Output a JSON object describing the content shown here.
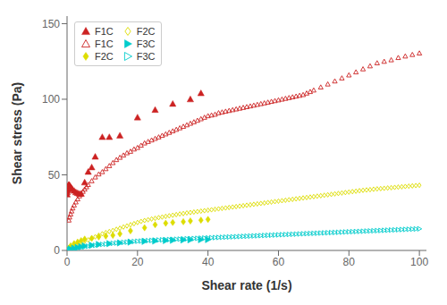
{
  "chart_data": {
    "type": "scatter",
    "xlabel": "Shear rate (1/s)",
    "ylabel": "Shear stress (Pa)",
    "xlim": [
      0,
      102
    ],
    "ylim": [
      0,
      155
    ],
    "xticks": [
      0,
      20,
      40,
      60,
      80,
      100
    ],
    "yticks": [
      0,
      50,
      100,
      150
    ],
    "legend": "upper left",
    "series": [
      {
        "name": "F1C",
        "color": "#cc2222",
        "marker": "triangle",
        "x": [
          0.01,
          0.02,
          0.04,
          0.07,
          0.1,
          0.15,
          0.2,
          0.3,
          0.4,
          0.5,
          0.6,
          0.7,
          0.8,
          1.0,
          1.2,
          1.5,
          2.0,
          2.5,
          3.0,
          3.5,
          4.0,
          5.0,
          6.0,
          7.0,
          8.0,
          10.0,
          12.0,
          15.0,
          20.0,
          25.0,
          30.0,
          35.0,
          38.0
        ],
        "values": [
          37.0,
          38.5,
          39.5,
          40.5,
          41.0,
          41.5,
          42.0,
          42.5,
          43.0,
          43.5,
          43.2,
          43.0,
          42.5,
          42.0,
          41.5,
          40.5,
          39.5,
          38.5,
          38.0,
          37.5,
          37.5,
          45.0,
          52.0,
          55.0,
          62.0,
          75.0,
          75.0,
          76.0,
          88.0,
          93.0,
          97.0,
          100.0,
          104.0
        ]
      },
      {
        "name": "F1C",
        "color": "#cc2222",
        "marker": "triangle_open",
        "x": [
          0.5,
          0.7,
          1.0,
          1.3,
          1.6,
          2.0,
          2.5,
          3.0,
          3.5,
          4.0,
          4.5,
          5.0,
          5.5,
          6.0,
          7.0,
          8.0,
          9.0,
          10.0,
          11.0,
          12.0,
          13.0,
          14.0,
          15.0,
          16.0,
          17.0,
          18.0,
          19.0,
          20.0,
          21.0,
          22.0,
          23.0,
          24.0,
          25.0,
          26.0,
          27.0,
          28.0,
          29.0,
          30.0,
          31.0,
          32.0,
          33.0,
          34.0,
          35.0,
          36.0,
          37.0,
          38.0,
          39.0,
          40.0,
          41.0,
          42.0,
          43.0,
          44.0,
          45.0,
          46.0,
          47.0,
          48.0,
          49.0,
          50.0,
          51.0,
          52.0,
          53.0,
          54.0,
          55.0,
          56.0,
          57.0,
          58.0,
          59.0,
          60.0,
          61.0,
          62.0,
          63.0,
          64.0,
          65.0,
          66.0,
          67.0,
          68.0,
          69.0,
          70.0,
          72.0,
          74.0,
          76.0,
          78.0,
          80.0,
          82.0,
          84.0,
          86.0,
          88.0,
          90.0,
          92.0,
          94.0,
          96.0,
          98.0,
          100.0
        ],
        "values": [
          20.0,
          22.0,
          24.0,
          26.0,
          28.0,
          30.0,
          32.0,
          34.0,
          36.0,
          37.5,
          39.0,
          40.5,
          42.0,
          43.5,
          46.0,
          48.5,
          50.5,
          52.0,
          54.0,
          56.0,
          58.0,
          60.0,
          61.5,
          63.0,
          64.5,
          65.5,
          67.0,
          68.0,
          69.5,
          71.0,
          72.0,
          73.0,
          74.0,
          75.0,
          76.0,
          77.0,
          78.0,
          79.0,
          80.0,
          81.0,
          82.0,
          83.0,
          84.0,
          85.0,
          86.0,
          87.0,
          88.0,
          89.0,
          89.5,
          90.0,
          91.0,
          91.5,
          92.0,
          92.5,
          93.0,
          93.5,
          94.0,
          94.5,
          95.0,
          95.5,
          96.0,
          96.5,
          97.0,
          97.5,
          98.0,
          98.5,
          99.0,
          99.5,
          100.0,
          100.5,
          101.0,
          101.5,
          102.0,
          102.5,
          103.0,
          104.0,
          105.0,
          106.0,
          108.0,
          110.0,
          112.0,
          114.0,
          116.0,
          118.0,
          120.0,
          122.0,
          124.0,
          125.0,
          126.0,
          127.5,
          128.5,
          129.5,
          130.5
        ]
      },
      {
        "name": "F2C",
        "color": "#dddd00",
        "marker": "diamond",
        "x": [
          0.1,
          0.3,
          0.5,
          1.0,
          2.0,
          3.0,
          4.0,
          5.0,
          7.0,
          9.0,
          11.0,
          13.0,
          15.0,
          18.0,
          22.0,
          25.0,
          28.0,
          30.0,
          33.0,
          35.0,
          38.0,
          40.0
        ],
        "values": [
          0.5,
          1.0,
          1.5,
          3.0,
          4.5,
          5.5,
          6.5,
          7.5,
          8.0,
          9.0,
          9.5,
          10.0,
          11.0,
          13.0,
          15.0,
          17.0,
          18.0,
          18.5,
          19.0,
          19.5,
          20.0,
          20.5
        ]
      },
      {
        "name": "F2C",
        "color": "#dddd00",
        "marker": "diamond_open",
        "x": [
          1.0,
          2.0,
          3.0,
          4.0,
          5.0,
          6.0,
          7.0,
          8.0,
          9.0,
          10.0,
          11.0,
          12.0,
          13.0,
          14.0,
          15.0,
          16.0,
          17.0,
          18.0,
          19.0,
          20.0,
          21.0,
          22.0,
          23.0,
          24.0,
          25.0,
          26.0,
          27.0,
          28.0,
          29.0,
          30.0,
          31.0,
          32.0,
          33.0,
          34.0,
          35.0,
          36.0,
          37.0,
          38.0,
          39.0,
          40.0,
          41.0,
          42.0,
          43.0,
          44.0,
          45.0,
          46.0,
          47.0,
          48.0,
          49.0,
          50.0,
          51.0,
          52.0,
          53.0,
          54.0,
          55.0,
          56.0,
          57.0,
          58.0,
          59.0,
          60.0,
          61.0,
          62.0,
          63.0,
          64.0,
          65.0,
          66.0,
          67.0,
          68.0,
          69.0,
          70.0,
          71.0,
          72.0,
          73.0,
          74.0,
          75.0,
          76.0,
          77.0,
          78.0,
          79.0,
          80.0,
          81.0,
          82.0,
          83.0,
          84.0,
          85.0,
          86.0,
          87.0,
          88.0,
          89.0,
          90.0,
          91.0,
          92.0,
          93.0,
          94.0,
          95.0,
          96.0,
          97.0,
          98.0,
          99.0,
          100.0
        ],
        "values": [
          2.0,
          3.0,
          4.0,
          5.0,
          6.0,
          7.0,
          8.0,
          9.0,
          10.0,
          11.0,
          11.8,
          12.5,
          13.2,
          14.0,
          14.7,
          15.5,
          16.2,
          17.0,
          17.7,
          18.5,
          19.2,
          19.8,
          20.3,
          20.8,
          21.2,
          21.7,
          22.1,
          22.5,
          22.9,
          23.3,
          23.7,
          24.1,
          24.4,
          24.8,
          25.1,
          25.4,
          25.7,
          26.0,
          26.3,
          26.6,
          26.9,
          27.2,
          27.5,
          27.8,
          28.1,
          28.4,
          28.7,
          29.0,
          29.3,
          29.6,
          29.9,
          30.2,
          30.5,
          30.8,
          31.1,
          31.4,
          31.7,
          32.0,
          32.3,
          32.6,
          32.9,
          33.2,
          33.5,
          33.8,
          34.1,
          34.4,
          34.7,
          35.0,
          35.3,
          35.6,
          35.9,
          36.2,
          36.5,
          36.8,
          37.1,
          37.4,
          37.7,
          38.0,
          38.3,
          38.6,
          38.9,
          39.2,
          39.5,
          39.8,
          40.0,
          40.2,
          40.5,
          40.7,
          40.9,
          41.1,
          41.3,
          41.5,
          41.7,
          41.9,
          42.1,
          42.3,
          42.5,
          42.7,
          42.9,
          43.1
        ]
      },
      {
        "name": "F3C",
        "color": "#00cccc",
        "marker": "triangle_right",
        "x": [
          0.1,
          0.3,
          0.5,
          1.0,
          2.0,
          3.0,
          4.0,
          5.0,
          7.0,
          9.0,
          12.0,
          15.0,
          18.0,
          22.0,
          25.0,
          28.0,
          30.0,
          33.0,
          35.0,
          38.0,
          40.0
        ],
        "values": [
          0.1,
          0.3,
          0.5,
          1.0,
          1.5,
          2.0,
          2.5,
          3.0,
          3.5,
          4.0,
          4.5,
          5.0,
          5.5,
          6.0,
          6.2,
          6.5,
          6.7,
          6.9,
          7.0,
          7.1,
          7.2
        ]
      },
      {
        "name": "F3C",
        "color": "#00cccc",
        "marker": "triangle_right_open",
        "x": [
          1.0,
          2.0,
          3.0,
          4.0,
          5.0,
          6.0,
          7.0,
          8.0,
          9.0,
          10.0,
          11.0,
          12.0,
          13.0,
          14.0,
          15.0,
          16.0,
          17.0,
          18.0,
          19.0,
          20.0,
          21.0,
          22.0,
          23.0,
          24.0,
          25.0,
          26.0,
          27.0,
          28.0,
          29.0,
          30.0,
          31.0,
          32.0,
          33.0,
          34.0,
          35.0,
          36.0,
          37.0,
          38.0,
          39.0,
          40.0,
          41.0,
          42.0,
          43.0,
          44.0,
          45.0,
          46.0,
          47.0,
          48.0,
          49.0,
          50.0,
          51.0,
          52.0,
          53.0,
          54.0,
          55.0,
          56.0,
          57.0,
          58.0,
          59.0,
          60.0,
          61.0,
          62.0,
          63.0,
          64.0,
          65.0,
          66.0,
          67.0,
          68.0,
          69.0,
          70.0,
          71.0,
          72.0,
          73.0,
          74.0,
          75.0,
          76.0,
          77.0,
          78.0,
          79.0,
          80.0,
          81.0,
          82.0,
          83.0,
          84.0,
          85.0,
          86.0,
          87.0,
          88.0,
          89.0,
          90.0,
          91.0,
          92.0,
          93.0,
          94.0,
          95.0,
          96.0,
          97.0,
          98.0,
          99.0,
          100.0
        ],
        "values": [
          0.5,
          1.0,
          1.5,
          2.0,
          2.4,
          2.8,
          3.1,
          3.4,
          3.7,
          4.0,
          4.2,
          4.5,
          4.7,
          4.9,
          5.1,
          5.3,
          5.5,
          5.7,
          5.9,
          6.1,
          6.2,
          6.4,
          6.5,
          6.6,
          6.8,
          6.9,
          7.0,
          7.1,
          7.2,
          7.3,
          7.4,
          7.5,
          7.6,
          7.7,
          7.8,
          7.9,
          8.0,
          8.1,
          8.2,
          8.3,
          8.4,
          8.5,
          8.6,
          8.7,
          8.8,
          8.9,
          9.0,
          9.1,
          9.2,
          9.3,
          9.4,
          9.5,
          9.6,
          9.7,
          9.8,
          9.9,
          10.0,
          10.1,
          10.2,
          10.3,
          10.4,
          10.5,
          10.6,
          10.7,
          10.8,
          10.9,
          11.0,
          11.1,
          11.2,
          11.3,
          11.4,
          11.5,
          11.6,
          11.7,
          11.8,
          11.9,
          12.0,
          12.1,
          12.2,
          12.3,
          12.4,
          12.5,
          12.6,
          12.7,
          12.8,
          12.9,
          13.0,
          13.1,
          13.2,
          13.3,
          13.4,
          13.5,
          13.6,
          13.7,
          13.8,
          13.9,
          14.0,
          14.1,
          14.2,
          14.3
        ]
      }
    ]
  }
}
